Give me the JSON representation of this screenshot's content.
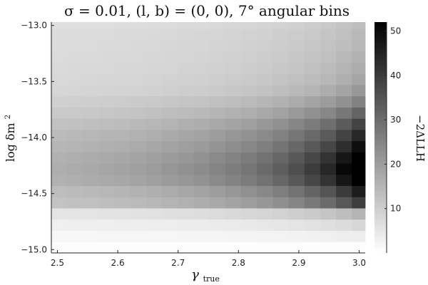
{
  "chart_data": {
    "type": "heatmap",
    "title": "σ = 0.01,  (l, b) = (0, 0),  7° angular bins",
    "xlabel": "γ",
    "xlabel_sub": "true",
    "ylabel": "log δm",
    "ylabel_sup": "2",
    "colorbar_label": "−2ΔLLH",
    "xlim": [
      2.49,
      3.01
    ],
    "ylim": [
      -15.03,
      -12.97
    ],
    "x_ticks": [
      {
        "value": 2.5,
        "label": "2.5"
      },
      {
        "value": 2.6,
        "label": "2.6"
      },
      {
        "value": 2.7,
        "label": "2.7"
      },
      {
        "value": 2.8,
        "label": "2.8"
      },
      {
        "value": 2.9,
        "label": "2.9"
      },
      {
        "value": 3.0,
        "label": "3.0"
      }
    ],
    "y_ticks": [
      {
        "value": -13.0,
        "label": "−13.0"
      },
      {
        "value": -13.5,
        "label": "−13.5"
      },
      {
        "value": -14.0,
        "label": "−14.0"
      },
      {
        "value": -14.5,
        "label": "−14.5"
      },
      {
        "value": -15.0,
        "label": "−15.0"
      }
    ],
    "colorbar_range": [
      0,
      52
    ],
    "colorbar_ticks": [
      {
        "value": 10,
        "label": "10"
      },
      {
        "value": 20,
        "label": "20"
      },
      {
        "value": 30,
        "label": "30"
      },
      {
        "value": 40,
        "label": "40"
      },
      {
        "value": 50,
        "label": "50"
      }
    ],
    "colormap": [
      "#ffffff",
      "#000000"
    ],
    "grid": false,
    "x_edges": [
      2.49,
      2.5162,
      2.5424,
      2.5686,
      2.5948,
      2.621,
      2.6472,
      2.6734,
      2.6996,
      2.7258,
      2.752,
      2.7782,
      2.8044,
      2.8306,
      2.8568,
      2.883,
      2.9092,
      2.9354,
      2.9616,
      2.9878,
      3.01
    ],
    "y_edges": [
      -15.03,
      -14.93,
      -14.83,
      -14.73,
      -14.63,
      -14.53,
      -14.43,
      -14.33,
      -14.23,
      -14.13,
      -14.03,
      -13.93,
      -13.83,
      -13.73,
      -13.63,
      -13.53,
      -13.43,
      -13.33,
      -13.23,
      -13.13,
      -13.03,
      -12.97
    ],
    "x_profile": [
      0.18,
      0.19,
      0.2,
      0.21,
      0.22,
      0.235,
      0.25,
      0.27,
      0.29,
      0.31,
      0.34,
      0.37,
      0.4,
      0.44,
      0.49,
      0.55,
      0.62,
      0.7,
      0.82,
      0.97
    ],
    "y_profile": [
      0.0,
      0.05,
      0.12,
      0.24,
      0.65,
      0.78,
      0.93,
      1.0,
      0.93,
      0.82,
      0.72,
      0.62,
      0.5,
      0.38,
      0.3,
      0.25,
      0.22,
      0.2,
      0.18,
      0.17,
      0.16
    ],
    "z_base": [
      0.5,
      1.2,
      2.0,
      3.0,
      6.0,
      6.0,
      7.0,
      7.0,
      7.0,
      7.0,
      7.0,
      6.5,
      6.0,
      6.0,
      5.5,
      5.5,
      5.5,
      5.5,
      5.5,
      5.5,
      5.0
    ],
    "z_scale": 53
  }
}
